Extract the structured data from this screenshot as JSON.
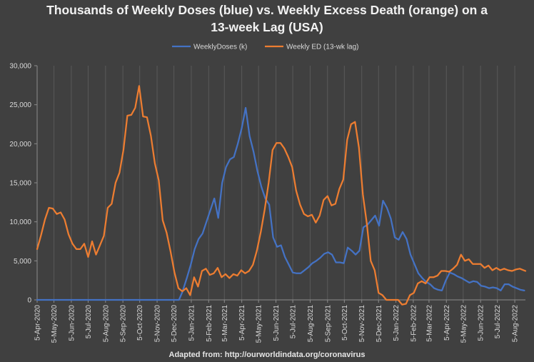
{
  "chart_data": {
    "type": "line",
    "title_line1": "Thousands of Weekly Doses (blue) vs. Weekly Excess Death (orange) on a",
    "title_line2": "13-week Lag (USA)",
    "footnote": "Adapted from: http://ourworldindata.org/coronavirus",
    "ylim": [
      0,
      30000
    ],
    "yticks": [
      0,
      5000,
      10000,
      15000,
      20000,
      25000,
      30000
    ],
    "ytick_labels": [
      "0",
      "5,000",
      "10,000",
      "15,000",
      "20,000",
      "25,000",
      "30,000"
    ],
    "xtick_labels": [
      "5-Apr-2020",
      "5-May-2020",
      "5-Jun-2020",
      "5-Jul-2020",
      "5-Aug-2020",
      "5-Sep-2020",
      "5-Oct-2020",
      "5-Nov-2020",
      "5-Dec-2020",
      "5-Jan-2021",
      "5-Feb-2021",
      "5-Mar-2021",
      "5-Apr-2021",
      "5-May-2021",
      "5-Jun-2021",
      "5-Jul-2021",
      "5-Aug-2021",
      "5-Sep-2021",
      "5-Oct-2021",
      "5-Nov-2021",
      "5-Dec-2021",
      "5-Jan-2022",
      "5-Feb-2022",
      "5-Mar-2022",
      "5-Apr-2022",
      "5-May-2022",
      "5-Jun-2022",
      "5-Jul-2022",
      "5-Aug-2022"
    ],
    "x_start": "2020-04-05",
    "x_end": "2022-08-24",
    "legend_position": "top-center",
    "grid": "vertical",
    "series": [
      {
        "name": "WeeklyDoses (k)",
        "color": "#4472c4",
        "points": [
          [
            "2020-04-05",
            0
          ],
          [
            "2020-07-05",
            0
          ],
          [
            "2020-10-05",
            0
          ],
          [
            "2020-12-14",
            0
          ],
          [
            "2020-12-20",
            1000
          ],
          [
            "2020-12-28",
            2800
          ],
          [
            "2021-01-04",
            4500
          ],
          [
            "2021-01-11",
            6500
          ],
          [
            "2021-01-18",
            7800
          ],
          [
            "2021-01-25",
            8500
          ],
          [
            "2021-02-01",
            10000
          ],
          [
            "2021-02-08",
            11500
          ],
          [
            "2021-02-15",
            13000
          ],
          [
            "2021-02-22",
            10500
          ],
          [
            "2021-03-01",
            15000
          ],
          [
            "2021-03-08",
            17000
          ],
          [
            "2021-03-15",
            18000
          ],
          [
            "2021-03-22",
            18300
          ],
          [
            "2021-03-29",
            20000
          ],
          [
            "2021-04-05",
            22000
          ],
          [
            "2021-04-12",
            24600
          ],
          [
            "2021-04-19",
            21000
          ],
          [
            "2021-04-26",
            19000
          ],
          [
            "2021-05-03",
            16500
          ],
          [
            "2021-05-10",
            14500
          ],
          [
            "2021-05-17",
            13000
          ],
          [
            "2021-05-24",
            12200
          ],
          [
            "2021-05-31",
            8000
          ],
          [
            "2021-06-07",
            6800
          ],
          [
            "2021-06-14",
            7000
          ],
          [
            "2021-06-21",
            5500
          ],
          [
            "2021-06-28",
            4500
          ],
          [
            "2021-07-05",
            3500
          ],
          [
            "2021-07-12",
            3400
          ],
          [
            "2021-07-19",
            3400
          ],
          [
            "2021-07-26",
            3800
          ],
          [
            "2021-08-02",
            4200
          ],
          [
            "2021-08-09",
            4700
          ],
          [
            "2021-08-16",
            5000
          ],
          [
            "2021-08-23",
            5400
          ],
          [
            "2021-08-30",
            5900
          ],
          [
            "2021-09-06",
            6100
          ],
          [
            "2021-09-13",
            5800
          ],
          [
            "2021-09-20",
            4800
          ],
          [
            "2021-09-27",
            4800
          ],
          [
            "2021-10-04",
            4700
          ],
          [
            "2021-10-11",
            6700
          ],
          [
            "2021-10-18",
            6300
          ],
          [
            "2021-10-25",
            5800
          ],
          [
            "2021-11-01",
            6300
          ],
          [
            "2021-11-08",
            9300
          ],
          [
            "2021-11-15",
            9600
          ],
          [
            "2021-11-22",
            10200
          ],
          [
            "2021-11-29",
            10800
          ],
          [
            "2021-12-06",
            9500
          ],
          [
            "2021-12-13",
            12700
          ],
          [
            "2021-12-20",
            11800
          ],
          [
            "2021-12-27",
            10400
          ],
          [
            "2022-01-03",
            8000
          ],
          [
            "2022-01-10",
            7700
          ],
          [
            "2022-01-17",
            8700
          ],
          [
            "2022-01-24",
            7800
          ],
          [
            "2022-01-31",
            5800
          ],
          [
            "2022-02-07",
            4600
          ],
          [
            "2022-02-14",
            3400
          ],
          [
            "2022-02-21",
            2800
          ],
          [
            "2022-02-28",
            2300
          ],
          [
            "2022-03-07",
            2000
          ],
          [
            "2022-03-14",
            1500
          ],
          [
            "2022-03-21",
            1300
          ],
          [
            "2022-03-28",
            1200
          ],
          [
            "2022-04-04",
            2500
          ],
          [
            "2022-04-11",
            3500
          ],
          [
            "2022-04-18",
            3300
          ],
          [
            "2022-04-25",
            3000
          ],
          [
            "2022-05-02",
            2800
          ],
          [
            "2022-05-09",
            2500
          ],
          [
            "2022-05-16",
            2200
          ],
          [
            "2022-05-23",
            2400
          ],
          [
            "2022-05-30",
            2300
          ],
          [
            "2022-06-06",
            1800
          ],
          [
            "2022-06-13",
            1700
          ],
          [
            "2022-06-20",
            1500
          ],
          [
            "2022-06-27",
            1600
          ],
          [
            "2022-07-04",
            1500
          ],
          [
            "2022-07-11",
            1200
          ],
          [
            "2022-07-18",
            2000
          ],
          [
            "2022-07-25",
            2000
          ],
          [
            "2022-08-01",
            1700
          ],
          [
            "2022-08-08",
            1500
          ],
          [
            "2022-08-15",
            1300
          ],
          [
            "2022-08-22",
            1200
          ]
        ]
      },
      {
        "name": "Weekly ED (13-wk lag)",
        "color": "#ed7d31",
        "points": [
          [
            "2020-04-05",
            6500
          ],
          [
            "2020-04-12",
            8300
          ],
          [
            "2020-04-19",
            10300
          ],
          [
            "2020-04-26",
            11800
          ],
          [
            "2020-05-03",
            11700
          ],
          [
            "2020-05-10",
            11000
          ],
          [
            "2020-05-17",
            11200
          ],
          [
            "2020-05-24",
            10300
          ],
          [
            "2020-05-31",
            8400
          ],
          [
            "2020-06-07",
            7200
          ],
          [
            "2020-06-14",
            6500
          ],
          [
            "2020-06-21",
            6500
          ],
          [
            "2020-06-28",
            7200
          ],
          [
            "2020-07-05",
            5500
          ],
          [
            "2020-07-12",
            7500
          ],
          [
            "2020-07-19",
            5800
          ],
          [
            "2020-07-26",
            7000
          ],
          [
            "2020-08-02",
            8200
          ],
          [
            "2020-08-09",
            11800
          ],
          [
            "2020-08-16",
            12300
          ],
          [
            "2020-08-23",
            15000
          ],
          [
            "2020-08-30",
            16300
          ],
          [
            "2020-09-06",
            19200
          ],
          [
            "2020-09-13",
            23600
          ],
          [
            "2020-09-20",
            23700
          ],
          [
            "2020-09-27",
            24600
          ],
          [
            "2020-10-04",
            27400
          ],
          [
            "2020-10-11",
            23500
          ],
          [
            "2020-10-18",
            23400
          ],
          [
            "2020-10-25",
            21000
          ],
          [
            "2020-11-01",
            17500
          ],
          [
            "2020-11-08",
            15300
          ],
          [
            "2020-11-15",
            10200
          ],
          [
            "2020-11-22",
            8600
          ],
          [
            "2020-11-29",
            6200
          ],
          [
            "2020-12-06",
            3500
          ],
          [
            "2020-12-13",
            1500
          ],
          [
            "2020-12-20",
            1100
          ],
          [
            "2020-12-27",
            1500
          ],
          [
            "2021-01-03",
            600
          ],
          [
            "2021-01-10",
            2900
          ],
          [
            "2021-01-17",
            1700
          ],
          [
            "2021-01-24",
            3700
          ],
          [
            "2021-01-31",
            4000
          ],
          [
            "2021-02-07",
            3200
          ],
          [
            "2021-02-14",
            3400
          ],
          [
            "2021-02-21",
            4100
          ],
          [
            "2021-02-28",
            2900
          ],
          [
            "2021-03-07",
            3300
          ],
          [
            "2021-03-14",
            2800
          ],
          [
            "2021-03-21",
            3300
          ],
          [
            "2021-03-28",
            3100
          ],
          [
            "2021-04-04",
            3800
          ],
          [
            "2021-04-11",
            3400
          ],
          [
            "2021-04-18",
            3700
          ],
          [
            "2021-04-25",
            4500
          ],
          [
            "2021-05-02",
            6300
          ],
          [
            "2021-05-09",
            8700
          ],
          [
            "2021-05-16",
            11600
          ],
          [
            "2021-05-23",
            15000
          ],
          [
            "2021-05-30",
            19200
          ],
          [
            "2021-06-06",
            20100
          ],
          [
            "2021-06-13",
            20100
          ],
          [
            "2021-06-20",
            19400
          ],
          [
            "2021-06-27",
            18300
          ],
          [
            "2021-07-04",
            17000
          ],
          [
            "2021-07-11",
            14000
          ],
          [
            "2021-07-18",
            12200
          ],
          [
            "2021-07-25",
            11000
          ],
          [
            "2021-08-01",
            10700
          ],
          [
            "2021-08-08",
            10900
          ],
          [
            "2021-08-15",
            9900
          ],
          [
            "2021-08-22",
            10800
          ],
          [
            "2021-08-29",
            12800
          ],
          [
            "2021-09-05",
            13300
          ],
          [
            "2021-09-12",
            12100
          ],
          [
            "2021-09-19",
            12300
          ],
          [
            "2021-09-26",
            14200
          ],
          [
            "2021-10-03",
            15400
          ],
          [
            "2021-10-10",
            20500
          ],
          [
            "2021-10-17",
            22500
          ],
          [
            "2021-10-24",
            22800
          ],
          [
            "2021-10-31",
            19500
          ],
          [
            "2021-11-07",
            13500
          ],
          [
            "2021-11-14",
            9800
          ],
          [
            "2021-11-21",
            5000
          ],
          [
            "2021-11-28",
            3800
          ],
          [
            "2021-12-05",
            900
          ],
          [
            "2021-12-12",
            600
          ],
          [
            "2021-12-19",
            0
          ],
          [
            "2022-01-09",
            0
          ],
          [
            "2022-01-16",
            -600
          ],
          [
            "2022-01-23",
            -500
          ],
          [
            "2022-01-30",
            600
          ],
          [
            "2022-02-06",
            900
          ],
          [
            "2022-02-13",
            2100
          ],
          [
            "2022-02-20",
            2400
          ],
          [
            "2022-02-27",
            2100
          ],
          [
            "2022-03-06",
            2900
          ],
          [
            "2022-03-13",
            2900
          ],
          [
            "2022-03-20",
            3100
          ],
          [
            "2022-03-27",
            3700
          ],
          [
            "2022-04-03",
            3700
          ],
          [
            "2022-04-10",
            3600
          ],
          [
            "2022-04-17",
            4000
          ],
          [
            "2022-04-24",
            4500
          ],
          [
            "2022-05-01",
            5800
          ],
          [
            "2022-05-08",
            5000
          ],
          [
            "2022-05-15",
            5200
          ],
          [
            "2022-05-22",
            4600
          ],
          [
            "2022-05-29",
            4600
          ],
          [
            "2022-06-05",
            4600
          ],
          [
            "2022-06-12",
            4100
          ],
          [
            "2022-06-19",
            4400
          ],
          [
            "2022-06-26",
            3800
          ],
          [
            "2022-07-03",
            4100
          ],
          [
            "2022-07-10",
            3800
          ],
          [
            "2022-07-17",
            4000
          ],
          [
            "2022-07-24",
            3800
          ],
          [
            "2022-07-31",
            3700
          ],
          [
            "2022-08-07",
            3900
          ],
          [
            "2022-08-14",
            4000
          ],
          [
            "2022-08-24",
            3700
          ]
        ]
      }
    ]
  }
}
